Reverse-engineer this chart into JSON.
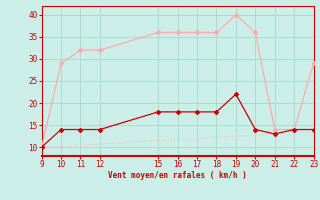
{
  "x_moyen": [
    9,
    10,
    11,
    12,
    15,
    16,
    17,
    18,
    19,
    20,
    21,
    22,
    23
  ],
  "y_moyen": [
    10,
    14,
    14,
    14,
    18,
    18,
    18,
    18,
    22,
    14,
    13,
    14,
    14
  ],
  "x_rafales": [
    9,
    10,
    11,
    12,
    15,
    16,
    17,
    18,
    19,
    20,
    21,
    22,
    23
  ],
  "y_rafales": [
    10,
    29,
    32,
    32,
    36,
    36,
    36,
    36,
    40,
    36,
    14,
    14,
    29
  ],
  "x_trend": [
    9,
    10,
    11,
    12,
    15,
    16,
    17,
    18,
    19,
    20,
    21,
    22,
    23
  ],
  "y_trend": [
    10,
    10.2,
    10.5,
    10.7,
    11.5,
    11.7,
    12.0,
    12.2,
    12.5,
    12.7,
    13.0,
    13.2,
    13.5
  ],
  "color_moyen": "#cc0000",
  "color_rafales": "#ffaaaa",
  "color_trend": "#ffbbbb",
  "background_color": "#cceee8",
  "grid_color": "#aaddcc",
  "xlabel": "Vent moyen/en rafales ( km/h )",
  "xlim": [
    9,
    23
  ],
  "ylim": [
    8,
    42
  ],
  "xticks": [
    9,
    10,
    11,
    12,
    15,
    16,
    17,
    18,
    19,
    20,
    21,
    22,
    23
  ],
  "yticks": [
    10,
    15,
    20,
    25,
    30,
    35,
    40
  ],
  "marker_size": 2.5,
  "line_width": 1.0
}
